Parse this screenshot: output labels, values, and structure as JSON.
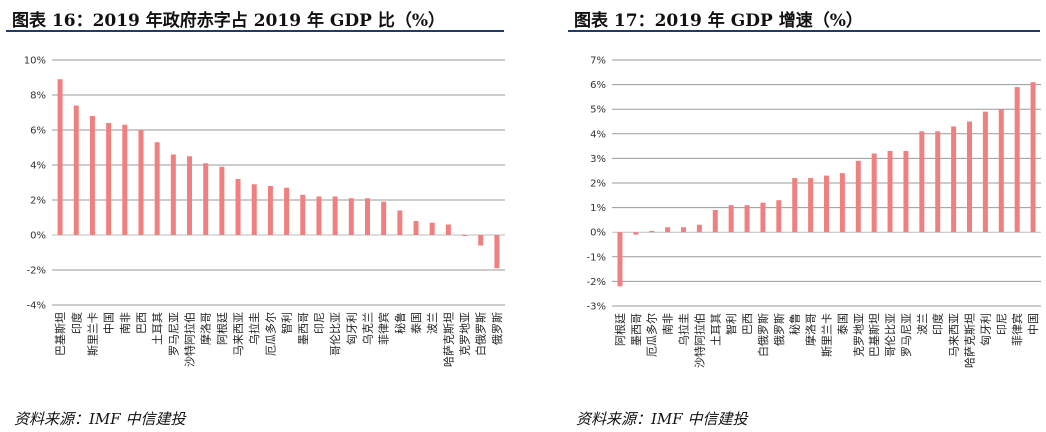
{
  "chart_data": [
    {
      "type": "bar",
      "title": "图表 16：2019 年政府赤字占 2019 年 GDP 比（%）",
      "source": "资料来源：IMF    中信建投",
      "color": "#f08080",
      "ylim": [
        -4,
        10
      ],
      "yticks": [
        -4,
        -2,
        0,
        2,
        4,
        6,
        8,
        10
      ],
      "ytick_labels": [
        "-4%",
        "-2%",
        "0%",
        "2%",
        "4%",
        "6%",
        "8%",
        "10%"
      ],
      "grid": true,
      "categories": [
        "巴基斯坦",
        "印度",
        "斯里兰卡",
        "中国",
        "南非",
        "巴西",
        "土耳其",
        "罗马尼亚",
        "沙特阿拉伯",
        "摩洛哥",
        "阿根廷",
        "马来西亚",
        "乌拉圭",
        "厄瓜多尔",
        "智利",
        "墨西哥",
        "印尼",
        "哥伦比亚",
        "匈牙利",
        "乌克兰",
        "菲律宾",
        "秘鲁",
        "泰国",
        "波兰",
        "哈萨克斯坦",
        "克罗地亚",
        "白俄罗斯",
        "俄罗斯"
      ],
      "values": [
        8.9,
        7.4,
        6.8,
        6.4,
        6.3,
        6.0,
        5.3,
        4.6,
        4.5,
        4.1,
        3.9,
        3.2,
        2.9,
        2.8,
        2.7,
        2.3,
        2.2,
        2.2,
        2.1,
        2.1,
        1.9,
        1.4,
        0.8,
        0.7,
        0.6,
        0.0,
        -0.6,
        -1.9
      ]
    },
    {
      "type": "bar",
      "title": "图表 17：2019 年 GDP 增速（%）",
      "source": "资料来源：IMF    中信建投",
      "color": "#f08080",
      "ylim": [
        -3,
        7
      ],
      "yticks": [
        -3,
        -2,
        -1,
        0,
        1,
        2,
        3,
        4,
        5,
        6,
        7
      ],
      "ytick_labels": [
        "-3%",
        "-2%",
        "-1%",
        "0%",
        "1%",
        "2%",
        "3%",
        "4%",
        "5%",
        "6%",
        "7%"
      ],
      "grid": true,
      "categories": [
        "阿根廷",
        "墨西哥",
        "厄瓜多尔",
        "南非",
        "乌拉圭",
        "沙特阿拉伯",
        "土耳其",
        "智利",
        "巴西",
        "白俄罗斯",
        "俄罗斯",
        "秘鲁",
        "摩洛哥",
        "斯里兰卡",
        "泰国",
        "克罗地亚",
        "巴基斯坦",
        "哥伦比亚",
        "罗马尼亚",
        "波兰",
        "印度",
        "马来西亚",
        "哈萨克斯坦",
        "匈牙利",
        "印尼",
        "菲律宾",
        "中国"
      ],
      "values": [
        -2.2,
        -0.1,
        0.05,
        0.2,
        0.2,
        0.3,
        0.9,
        1.1,
        1.1,
        1.2,
        1.3,
        2.2,
        2.2,
        2.3,
        2.4,
        2.9,
        3.2,
        3.3,
        3.3,
        4.1,
        4.1,
        4.3,
        4.5,
        4.9,
        5.0,
        5.9,
        6.1
      ]
    }
  ]
}
